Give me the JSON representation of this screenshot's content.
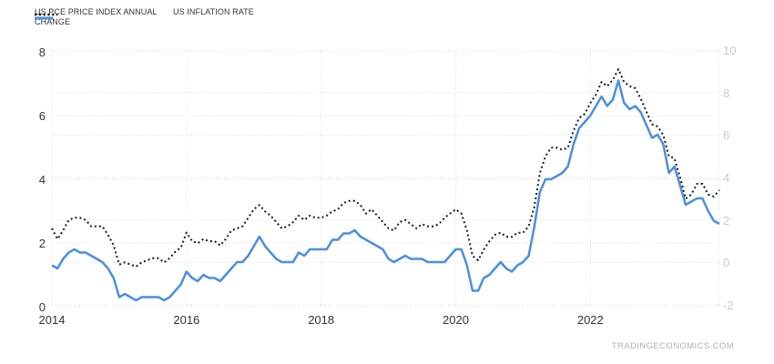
{
  "legend": {
    "items": [
      {
        "label": "US PCE PRICE INDEX ANNUAL CHANGE",
        "color": "#4a8fe2",
        "style": "solid"
      },
      {
        "label": "US INFLATION RATE",
        "color": "#1a1a1a",
        "style": "dotted"
      }
    ]
  },
  "watermark": "TRADINGECONOMICS.COM",
  "colors": {
    "pce_line": "#4a8fe2",
    "inflation_line": "#1a1a1a",
    "gridline": "#e0e0e0",
    "axis_text": "#333333",
    "right_axis_text": "#c9c9c9",
    "watermark_text": "#b0b0b0",
    "background": "#ffffff"
  },
  "chart_data": {
    "type": "line",
    "title": "",
    "x_period": "monthly, Jan 2014 - Dec 2023",
    "start_year": 2014,
    "x_axis": {
      "tick_years": [
        2014,
        2016,
        2018,
        2020,
        2022
      ],
      "tick_labels": [
        "2014",
        "2016",
        "2018",
        "2020",
        "2022"
      ]
    },
    "left_axis": {
      "range": [
        0,
        8
      ],
      "ticks": [
        0,
        2,
        4,
        6,
        8
      ],
      "tick_labels": [
        "0",
        "2",
        "4",
        "6",
        "8"
      ]
    },
    "right_axis": {
      "range": [
        -2,
        10
      ],
      "ticks": [
        -2,
        0,
        2,
        4,
        6,
        8,
        10
      ],
      "tick_labels": [
        "-2",
        "0",
        "2",
        "4",
        "6",
        "8",
        "10"
      ]
    },
    "grid": true,
    "legend_position": "top-left",
    "series": [
      {
        "name": "US PCE PRICE INDEX ANNUAL CHANGE",
        "axis": "left",
        "style": "solid",
        "color": "#4a8fe2",
        "values": [
          1.3,
          1.2,
          1.5,
          1.7,
          1.8,
          1.7,
          1.7,
          1.6,
          1.5,
          1.4,
          1.2,
          0.9,
          0.3,
          0.4,
          0.3,
          0.2,
          0.3,
          0.3,
          0.3,
          0.3,
          0.2,
          0.3,
          0.5,
          0.7,
          1.1,
          0.9,
          0.8,
          1.0,
          0.9,
          0.9,
          0.8,
          1.0,
          1.2,
          1.4,
          1.4,
          1.6,
          1.9,
          2.2,
          1.9,
          1.7,
          1.5,
          1.4,
          1.4,
          1.4,
          1.7,
          1.6,
          1.8,
          1.8,
          1.8,
          1.8,
          2.1,
          2.1,
          2.3,
          2.3,
          2.4,
          2.2,
          2.1,
          2.0,
          1.9,
          1.8,
          1.5,
          1.4,
          1.5,
          1.6,
          1.5,
          1.5,
          1.5,
          1.4,
          1.4,
          1.4,
          1.4,
          1.6,
          1.8,
          1.8,
          1.3,
          0.5,
          0.5,
          0.9,
          1.0,
          1.2,
          1.4,
          1.2,
          1.1,
          1.3,
          1.4,
          1.6,
          2.5,
          3.6,
          4.0,
          4.0,
          4.1,
          4.2,
          4.4,
          5.1,
          5.6,
          5.8,
          6.0,
          6.3,
          6.6,
          6.3,
          6.5,
          7.1,
          6.4,
          6.2,
          6.3,
          6.1,
          5.7,
          5.3,
          5.4,
          5.1,
          4.2,
          4.4,
          3.8,
          3.2,
          3.3,
          3.4,
          3.4,
          3.0,
          2.7,
          2.6
        ]
      },
      {
        "name": "US INFLATION RATE",
        "axis": "right",
        "style": "dotted",
        "color": "#1a1a1a",
        "values": [
          1.6,
          1.1,
          1.5,
          2.0,
          2.1,
          2.1,
          2.0,
          1.7,
          1.7,
          1.7,
          1.3,
          0.8,
          -0.1,
          0.0,
          -0.1,
          -0.2,
          0.0,
          0.1,
          0.2,
          0.2,
          0.0,
          0.2,
          0.5,
          0.7,
          1.4,
          1.0,
          0.9,
          1.1,
          1.0,
          1.0,
          0.8,
          1.1,
          1.5,
          1.6,
          1.7,
          2.1,
          2.5,
          2.7,
          2.4,
          2.2,
          1.9,
          1.6,
          1.7,
          1.9,
          2.2,
          2.0,
          2.2,
          2.1,
          2.1,
          2.2,
          2.4,
          2.5,
          2.8,
          2.9,
          2.9,
          2.7,
          2.3,
          2.5,
          2.2,
          1.9,
          1.6,
          1.5,
          1.9,
          2.0,
          1.8,
          1.6,
          1.8,
          1.7,
          1.7,
          1.8,
          2.1,
          2.3,
          2.5,
          2.3,
          1.5,
          0.3,
          0.1,
          0.6,
          1.0,
          1.3,
          1.4,
          1.2,
          1.2,
          1.4,
          1.4,
          1.7,
          2.6,
          4.2,
          5.0,
          5.4,
          5.4,
          5.3,
          5.4,
          6.2,
          6.8,
          7.0,
          7.5,
          7.9,
          8.5,
          8.3,
          8.6,
          9.1,
          8.5,
          8.3,
          8.2,
          7.7,
          7.1,
          6.5,
          6.4,
          6.0,
          5.0,
          4.9,
          4.0,
          3.0,
          3.2,
          3.7,
          3.7,
          3.2,
          3.1,
          3.4
        ]
      }
    ]
  }
}
